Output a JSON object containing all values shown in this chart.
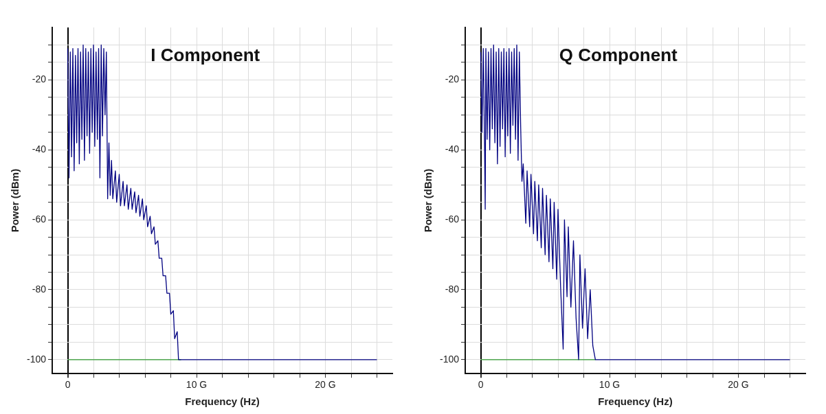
{
  "chart_data": [
    {
      "type": "line",
      "title": "I Component",
      "xlabel": "Frequency (Hz)",
      "ylabel": "Power (dBm)",
      "xlim": [
        -1.2,
        25.2
      ],
      "ylim": [
        -104,
        -5
      ],
      "grid": true,
      "legend": false,
      "marker": "none",
      "line_style": "solid",
      "xticks": [
        0,
        {
          "value": 2,
          "label": null
        },
        {
          "value": 4,
          "label": null
        },
        {
          "value": 6,
          "label": null
        },
        {
          "value": 8,
          "label": null
        },
        {
          "value": 10,
          "label": "10 G"
        },
        {
          "value": 12,
          "label": null
        },
        {
          "value": 14,
          "label": null
        },
        {
          "value": 16,
          "label": null
        },
        {
          "value": 18,
          "label": null
        },
        {
          "value": 20,
          "label": "20 G"
        },
        {
          "value": 22,
          "label": null
        },
        {
          "value": 24,
          "label": null
        }
      ],
      "yticks": [
        -100,
        {
          "value": -95,
          "label": null
        },
        {
          "value": -90,
          "label": null
        },
        {
          "value": -85,
          "label": null
        },
        -80,
        {
          "value": -75,
          "label": null
        },
        {
          "value": -70,
          "label": null
        },
        {
          "value": -65,
          "label": null
        },
        -60,
        {
          "value": -55,
          "label": null
        },
        {
          "value": -50,
          "label": null
        },
        {
          "value": -45,
          "label": null
        },
        -40,
        {
          "value": -35,
          "label": null
        },
        {
          "value": -30,
          "label": null
        },
        {
          "value": -25,
          "label": null
        },
        -20,
        {
          "value": -15,
          "label": null
        },
        {
          "value": -10,
          "label": null
        }
      ],
      "series": [
        {
          "color": "#2e9a2e",
          "x": [
            0,
            8.8
          ],
          "values": [
            -100,
            -100
          ]
        },
        {
          "color": "#000080",
          "x": [
            0,
            0.1,
            0.2,
            0.3,
            0.4,
            0.5,
            0.6,
            0.7,
            0.8,
            0.9,
            1.0,
            1.1,
            1.2,
            1.3,
            1.4,
            1.5,
            1.6,
            1.7,
            1.8,
            1.9,
            2.0,
            2.1,
            2.2,
            2.3,
            2.4,
            2.5,
            2.6,
            2.7,
            2.8,
            2.9,
            3.0,
            3.1,
            3.2,
            3.3,
            3.4,
            3.5,
            3.7,
            3.8,
            4.0,
            4.1,
            4.3,
            4.4,
            4.6,
            4.7,
            4.9,
            5.0,
            5.2,
            5.3,
            5.5,
            5.6,
            5.8,
            5.9,
            6.1,
            6.2,
            6.4,
            6.5,
            6.7,
            6.8,
            7.0,
            7.1,
            7.3,
            7.4,
            7.6,
            7.7,
            7.9,
            8.0,
            8.2,
            8.3,
            8.5,
            8.6,
            8.8,
            24
          ],
          "values": [
            -11,
            -48,
            -12,
            -42,
            -11,
            -46,
            -13,
            -38,
            -11,
            -44,
            -12,
            -37,
            -10,
            -43,
            -11,
            -36,
            -12,
            -41,
            -11,
            -35,
            -10,
            -39,
            -12,
            -37,
            -11,
            -48,
            -10,
            -36,
            -11,
            -30,
            -12,
            -54,
            -38,
            -53,
            -43,
            -54,
            -46,
            -55,
            -47,
            -56,
            -49,
            -56,
            -50,
            -57,
            -51,
            -57,
            -52,
            -58,
            -53,
            -59,
            -54,
            -60,
            -56,
            -62,
            -59,
            -64,
            -62,
            -67,
            -66,
            -71,
            -71,
            -76,
            -76,
            -81,
            -81,
            -87,
            -86,
            -94,
            -92,
            -100,
            -100,
            -100
          ]
        }
      ]
    },
    {
      "type": "line",
      "title": "Q Component",
      "xlabel": "Frequency (Hz)",
      "ylabel": "Power (dBm)",
      "xlim": [
        -1.2,
        25.2
      ],
      "ylim": [
        -104,
        -5
      ],
      "grid": true,
      "legend": false,
      "marker": "none",
      "line_style": "solid",
      "xticks": [
        0,
        {
          "value": 2,
          "label": null
        },
        {
          "value": 4,
          "label": null
        },
        {
          "value": 6,
          "label": null
        },
        {
          "value": 8,
          "label": null
        },
        {
          "value": 10,
          "label": "10 G"
        },
        {
          "value": 12,
          "label": null
        },
        {
          "value": 14,
          "label": null
        },
        {
          "value": 16,
          "label": null
        },
        {
          "value": 18,
          "label": null
        },
        {
          "value": 20,
          "label": "20 G"
        },
        {
          "value": 22,
          "label": null
        },
        {
          "value": 24,
          "label": null
        }
      ],
      "yticks": [
        -100,
        {
          "value": -95,
          "label": null
        },
        {
          "value": -90,
          "label": null
        },
        {
          "value": -85,
          "label": null
        },
        -80,
        {
          "value": -75,
          "label": null
        },
        {
          "value": -70,
          "label": null
        },
        {
          "value": -65,
          "label": null
        },
        -60,
        {
          "value": -55,
          "label": null
        },
        {
          "value": -50,
          "label": null
        },
        {
          "value": -45,
          "label": null
        },
        -40,
        {
          "value": -35,
          "label": null
        },
        {
          "value": -30,
          "label": null
        },
        {
          "value": -25,
          "label": null
        },
        -20,
        {
          "value": -15,
          "label": null
        },
        {
          "value": -10,
          "label": null
        }
      ],
      "series": [
        {
          "color": "#2e9a2e",
          "x": [
            0,
            8.9
          ],
          "values": [
            -100,
            -100
          ]
        },
        {
          "color": "#000080",
          "x": [
            0,
            0.1,
            0.2,
            0.3,
            0.35,
            0.4,
            0.5,
            0.6,
            0.7,
            0.8,
            0.9,
            1.0,
            1.1,
            1.2,
            1.3,
            1.4,
            1.5,
            1.6,
            1.7,
            1.8,
            1.9,
            2.0,
            2.1,
            2.2,
            2.3,
            2.4,
            2.5,
            2.6,
            2.7,
            2.8,
            2.9,
            3.0,
            3.1,
            3.2,
            3.3,
            3.5,
            3.6,
            3.8,
            3.9,
            4.1,
            4.2,
            4.4,
            4.5,
            4.7,
            4.8,
            5.0,
            5.1,
            5.3,
            5.4,
            5.6,
            5.7,
            5.9,
            6.0,
            6.2,
            6.4,
            6.5,
            6.7,
            6.8,
            7.0,
            7.2,
            7.4,
            7.6,
            7.7,
            7.9,
            8.1,
            8.3,
            8.5,
            8.7,
            8.9,
            24
          ],
          "values": [
            -12,
            -35,
            -11,
            -38,
            -57,
            -11,
            -37,
            -12,
            -40,
            -11,
            -34,
            -10,
            -38,
            -12,
            -44,
            -11,
            -39,
            -12,
            -34,
            -11,
            -42,
            -12,
            -36,
            -11,
            -41,
            -12,
            -33,
            -11,
            -37,
            -10,
            -43,
            -12,
            -33,
            -49,
            -44,
            -61,
            -46,
            -62,
            -47,
            -64,
            -49,
            -66,
            -50,
            -68,
            -51,
            -70,
            -53,
            -72,
            -54,
            -74,
            -55,
            -77,
            -57,
            -79,
            -97,
            -60,
            -82,
            -62,
            -85,
            -66,
            -88,
            -100,
            -70,
            -91,
            -74,
            -94,
            -80,
            -96,
            -100,
            -100
          ]
        }
      ]
    }
  ]
}
